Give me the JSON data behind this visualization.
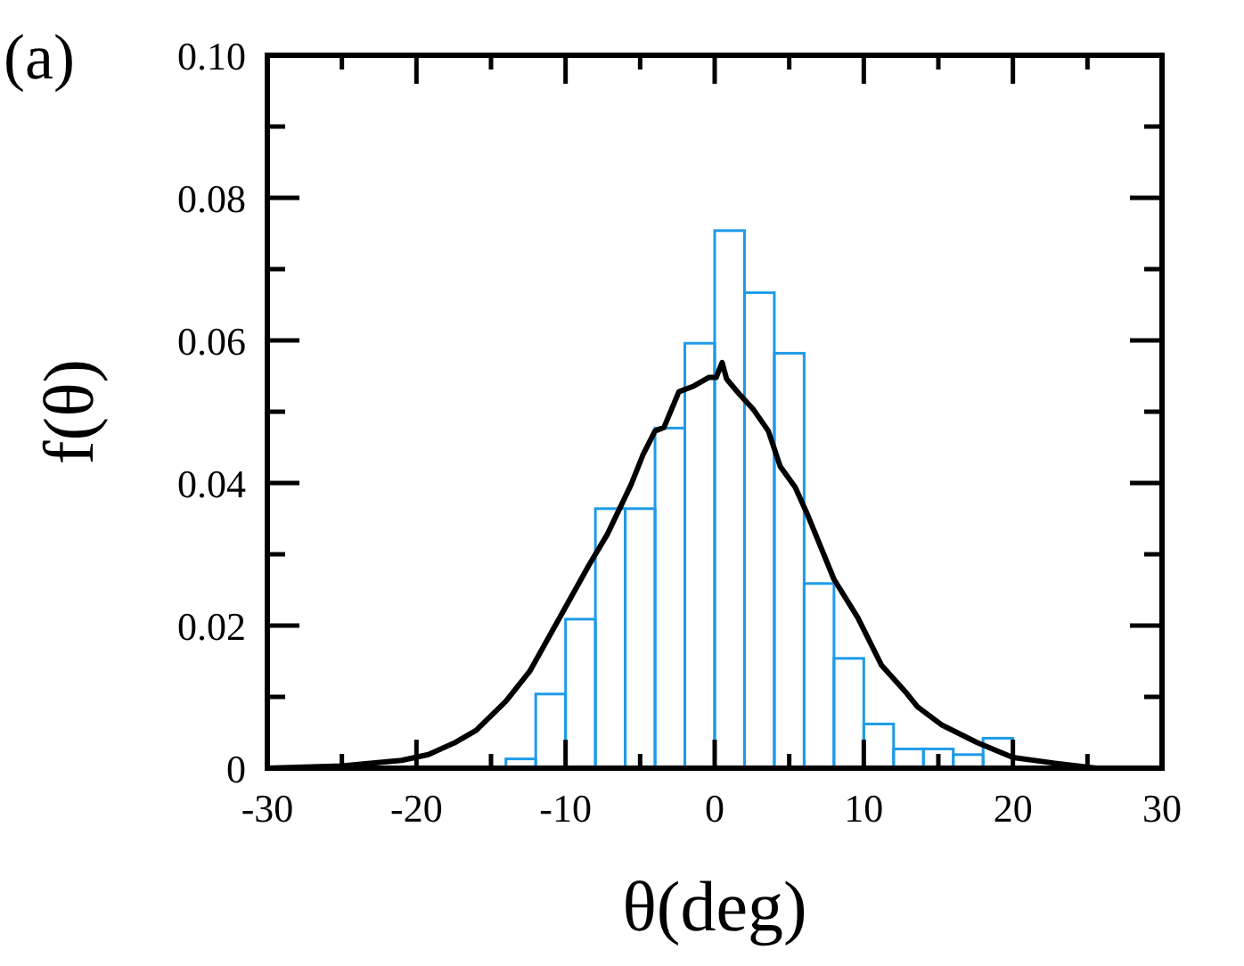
{
  "chart_data": {
    "type": "histogram",
    "xlabel": "θ(deg)",
    "ylabel": "f(θ)",
    "annotations": [
      "(a)"
    ],
    "xlim": [
      -30,
      30
    ],
    "ylim": [
      0,
      0.1
    ],
    "xticks": [
      -30,
      {
        "value": -25,
        "label": null
      },
      -20,
      {
        "value": -15,
        "label": null
      },
      -10,
      {
        "value": -5,
        "label": null
      },
      0,
      {
        "value": 5,
        "label": null
      },
      10,
      {
        "value": 15,
        "label": null
      },
      20,
      {
        "value": 25,
        "label": null
      },
      30
    ],
    "yticks": [
      0,
      {
        "value": 0.01,
        "label": null
      },
      0.02,
      {
        "value": 0.03,
        "label": null
      },
      0.04,
      {
        "value": 0.05,
        "label": null
      },
      0.06,
      {
        "value": 0.07,
        "label": null
      },
      0.08,
      {
        "value": 0.09,
        "label": null
      },
      {
        "value": 0.1,
        "label": "0.10"
      }
    ],
    "color": "#1e9be8",
    "bins": [
      -14,
      -12,
      -10,
      -8,
      -6,
      -4,
      -2,
      0,
      2,
      4,
      6,
      8,
      10,
      12,
      14,
      16,
      18,
      20
    ],
    "values": [
      0.0013,
      0.0104,
      0.0209,
      0.0364,
      0.0364,
      0.0477,
      0.0596,
      0.0754,
      0.0667,
      0.0582,
      0.0259,
      0.0154,
      0.0062,
      0.0027,
      0.0027,
      0.0019,
      0.0042
    ],
    "series": [
      {
        "type": "line",
        "color": "#000000",
        "x": [
          -30,
          -25,
          -21,
          -19.2,
          -17.4,
          -16,
          -14,
          -12.4,
          -10.4,
          -8.4,
          -7.2,
          -5.6,
          -4.8,
          -4,
          -3.4,
          -2.4,
          -1.4,
          -0.4,
          0.1,
          0.5,
          0.8,
          1.6,
          2.6,
          3.6,
          4.4,
          5.4,
          6.2,
          8,
          9.6,
          11.2,
          12.8,
          13.6,
          15.2,
          17.6,
          20,
          22.8,
          25.6,
          30
        ],
        "values": [
          0,
          0.0003,
          0.0011,
          0.0019,
          0.0036,
          0.0053,
          0.0094,
          0.0136,
          0.0211,
          0.0286,
          0.0328,
          0.0398,
          0.044,
          0.0473,
          0.0478,
          0.0528,
          0.0536,
          0.0548,
          0.0548,
          0.0569,
          0.0546,
          0.0526,
          0.0503,
          0.0473,
          0.0423,
          0.0394,
          0.0357,
          0.0265,
          0.0211,
          0.0144,
          0.0107,
          0.0086,
          0.0061,
          0.0036,
          0.0015,
          0.0007,
          0,
          0
        ]
      }
    ]
  }
}
